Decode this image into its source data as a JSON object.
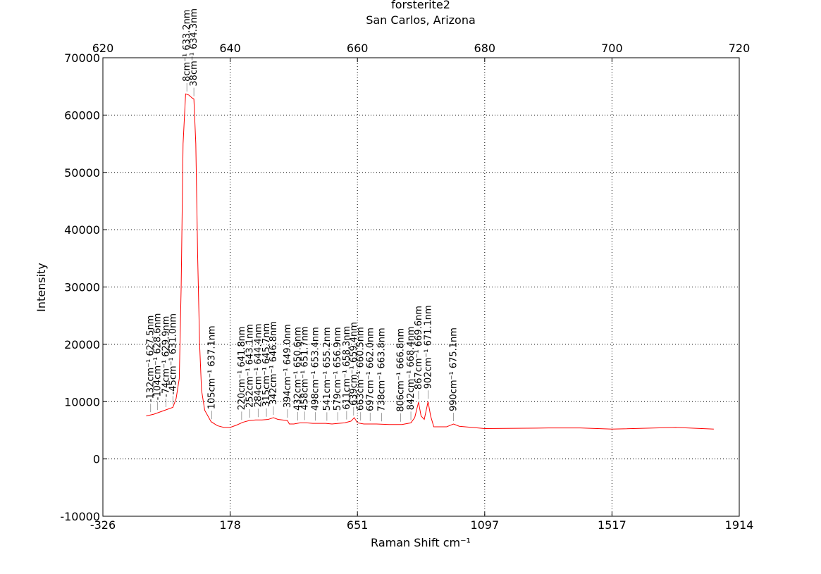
{
  "chart_data": {
    "type": "line",
    "title": "forsterite2",
    "subtitle": "San Carlos, Arizona",
    "xlabel": "Raman Shift cm⁻¹",
    "ylabel": "Intensity",
    "xlim": [
      620,
      720
    ],
    "xticks": [
      620,
      640,
      660,
      680,
      700,
      720
    ],
    "x2ticks": [
      {
        "value": 620,
        "label": "-326"
      },
      {
        "value": 640,
        "label": "178"
      },
      {
        "value": 660,
        "label": "651"
      },
      {
        "value": 680,
        "label": "1097"
      },
      {
        "value": 700,
        "label": "1517"
      },
      {
        "value": 720,
        "label": "1914"
      }
    ],
    "ylim": [
      -10000,
      70000
    ],
    "yticks": [
      -10000,
      0,
      10000,
      20000,
      30000,
      40000,
      50000,
      60000,
      70000
    ],
    "grid": true,
    "series": [
      {
        "name": "forsterite2",
        "color": "#ff0000",
        "x": [
          626.8,
          628.0,
          629.0,
          630.0,
          631.0,
          631.5,
          632.0,
          632.3,
          632.6,
          633.0,
          633.5,
          634.0,
          634.3,
          634.6,
          634.9,
          635.2,
          635.5,
          636,
          637,
          638,
          639,
          640,
          641,
          642,
          643,
          644,
          645,
          646,
          646.8,
          647.5,
          649,
          649.3,
          650,
          651,
          652,
          653,
          654,
          655,
          656,
          657,
          658,
          659,
          659.5,
          660,
          661,
          663,
          665,
          667,
          668.4,
          669,
          669.6,
          670,
          670.5,
          671.1,
          671.5,
          672,
          674,
          675.1,
          676,
          678,
          680,
          690,
          695,
          700,
          710,
          716
        ],
        "values": [
          7500,
          7800,
          8200,
          8600,
          9000,
          10500,
          14000,
          30000,
          55000,
          63700,
          63500,
          63000,
          62800,
          55000,
          35000,
          20000,
          12000,
          8500,
          6500,
          5800,
          5500,
          5500,
          5900,
          6400,
          6700,
          6800,
          6800,
          6900,
          7200,
          6900,
          6700,
          6100,
          6100,
          6300,
          6300,
          6200,
          6200,
          6200,
          6100,
          6200,
          6300,
          6600,
          7200,
          6300,
          6100,
          6100,
          6000,
          6000,
          6300,
          7200,
          9900,
          7500,
          6900,
          10000,
          7500,
          5600,
          5600,
          6100,
          5700,
          5500,
          5300,
          5400,
          5400,
          5200,
          5500,
          5200
        ]
      }
    ],
    "annotations": [
      {
        "x": 627.5,
        "label": "-132cm⁻¹ 627.5nm"
      },
      {
        "x": 628.6,
        "label": "-104cm⁻¹ 628.6nm"
      },
      {
        "x": 629.9,
        "label": "-74cm⁻¹ 629.9nm"
      },
      {
        "x": 631.0,
        "label": "-45cm⁻¹ 631.0nm"
      },
      {
        "x": 633.2,
        "label": "8cm⁻¹ 633.2nm"
      },
      {
        "x": 634.3,
        "label": "38cm⁻¹ 634.3nm"
      },
      {
        "x": 637.1,
        "label": "105cm⁻¹ 637.1nm"
      },
      {
        "x": 641.8,
        "label": "220cm⁻¹ 641.8nm"
      },
      {
        "x": 643.1,
        "label": "252cm⁻¹ 643.1nm"
      },
      {
        "x": 644.4,
        "label": "284cm⁻¹ 644.4nm"
      },
      {
        "x": 645.7,
        "label": "315cm⁻¹ 645.7nm"
      },
      {
        "x": 646.8,
        "label": "342cm⁻¹ 646.8nm"
      },
      {
        "x": 649.0,
        "label": "394cm⁻¹ 649.0nm"
      },
      {
        "x": 650.6,
        "label": "432cm⁻¹ 650.6nm"
      },
      {
        "x": 651.7,
        "label": "458cm⁻¹ 651.7nm"
      },
      {
        "x": 653.4,
        "label": "498cm⁻¹ 653.4nm"
      },
      {
        "x": 655.2,
        "label": "541cm⁻¹ 655.2nm"
      },
      {
        "x": 656.9,
        "label": "579cm⁻¹ 656.9nm"
      },
      {
        "x": 658.3,
        "label": "611cm⁻¹ 658.3nm"
      },
      {
        "x": 659.4,
        "label": "639cm⁻¹ 659.4nm"
      },
      {
        "x": 660.5,
        "label": "663cm⁻¹ 660.5nm"
      },
      {
        "x": 662.0,
        "label": "697cm⁻¹ 662.0nm"
      },
      {
        "x": 663.8,
        "label": "738cm⁻¹ 663.8nm"
      },
      {
        "x": 666.8,
        "label": "806cm⁻¹ 666.8nm"
      },
      {
        "x": 668.4,
        "label": "842cm⁻¹ 668.4nm"
      },
      {
        "x": 669.6,
        "label": "867cm⁻¹ 669.6nm"
      },
      {
        "x": 671.1,
        "label": "902cm⁻¹ 671.1nm"
      },
      {
        "x": 675.1,
        "label": "990cm⁻¹ 675.1nm"
      }
    ]
  }
}
